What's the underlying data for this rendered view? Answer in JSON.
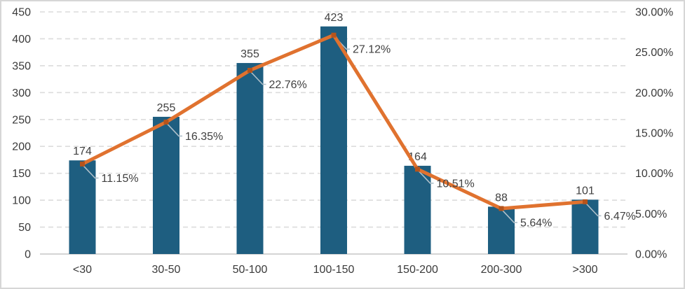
{
  "chart_data": {
    "type": "combo-bar-line",
    "title": "",
    "categories": [
      "<30",
      "30-50",
      "50-100",
      "100-150",
      "150-200",
      "200-300",
      ">300"
    ],
    "series": [
      {
        "name": "count-bars",
        "type": "bar",
        "axis": "left",
        "values": [
          174,
          255,
          355,
          423,
          164,
          88,
          101
        ],
        "data_labels": [
          "174",
          "255",
          "355",
          "423",
          "164",
          "88",
          "101"
        ],
        "color": "#1e5e80"
      },
      {
        "name": "percentage-line",
        "type": "line",
        "axis": "right",
        "values": [
          11.15,
          16.35,
          22.76,
          27.12,
          10.51,
          5.64,
          6.47
        ],
        "data_labels": [
          "11.15%",
          "16.35%",
          "22.76%",
          "27.12%",
          "10.51%",
          "5.64%",
          "6.47%"
        ],
        "color": "#e0722f",
        "marker_color": "#b5541c"
      }
    ],
    "left_axis": {
      "min": 0,
      "max": 450,
      "step": 50,
      "tick_labels": [
        "0",
        "50",
        "100",
        "150",
        "200",
        "250",
        "300",
        "350",
        "400",
        "450"
      ]
    },
    "right_axis": {
      "min": 0,
      "max": 30,
      "step": 5,
      "tick_labels": [
        "0.00%",
        "5.00%",
        "10.00%",
        "15.00%",
        "20.00%",
        "25.00%",
        "30.00%"
      ]
    },
    "grid": {
      "horizontal": "dashed",
      "vertical": "off"
    },
    "legend": "none",
    "colors": {
      "bar": "#1e5e80",
      "line": "#e0722f",
      "marker": "#b5541c",
      "leader_line": "#aebfc9",
      "text": "#404040",
      "tick_text": "#3a3a3a",
      "axis_line": "#c6c6c6",
      "gridline": "#dcdcdc",
      "background": "#ffffff",
      "frame_border": "#d6d6d6"
    }
  }
}
